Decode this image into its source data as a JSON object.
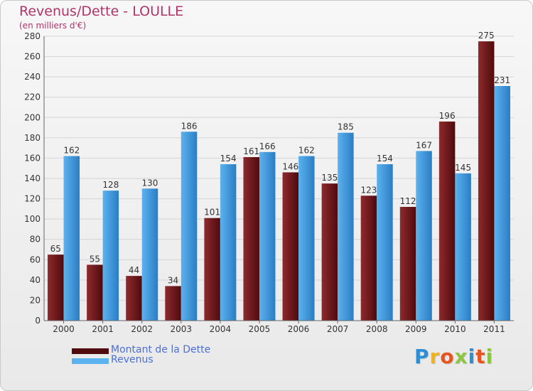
{
  "header": {
    "title": "Revenus/Dette - LOULLE",
    "subtitle": "(en milliers d'€)"
  },
  "colors": {
    "title": "#b0336a",
    "dette_light": "#8e2a2e",
    "dette_dark": "#4f0b0d",
    "revenus_light": "#5cb2ee",
    "revenus_dark": "#2a7dc4",
    "legend_text": "#4b6fd6",
    "grid": "#d4d4d4"
  },
  "chart_data": {
    "type": "bar",
    "title": "Revenus/Dette - LOULLE",
    "ylabel": "(en milliers d'€)",
    "xlabel": "",
    "ylim": [
      0,
      280
    ],
    "yticks": [
      0,
      20,
      40,
      60,
      80,
      100,
      120,
      140,
      160,
      180,
      200,
      220,
      240,
      260,
      280
    ],
    "grid": true,
    "categories": [
      "2000",
      "2001",
      "2002",
      "2003",
      "2004",
      "2005",
      "2006",
      "2007",
      "2008",
      "2009",
      "2010",
      "2011"
    ],
    "series": [
      {
        "name": "Montant de la Dette",
        "values": [
          65,
          55,
          44,
          34,
          101,
          161,
          146,
          135,
          123,
          112,
          196,
          275
        ]
      },
      {
        "name": "Revenus",
        "values": [
          162,
          128,
          130,
          186,
          154,
          166,
          162,
          185,
          154,
          167,
          145,
          231
        ]
      }
    ],
    "legend_position": "bottom-left"
  },
  "logo": {
    "letters": [
      {
        "char": "P",
        "color": "#2c8fd6"
      },
      {
        "char": "r",
        "color": "#f2b21a"
      },
      {
        "char": "o",
        "color": "#e8541f"
      },
      {
        "char": "x",
        "color": "#8cc63f"
      },
      {
        "char": "i",
        "color": "#2c8fd6"
      },
      {
        "char": "t",
        "color": "#e8541f"
      },
      {
        "char": "i",
        "color": "#8cc63f"
      }
    ]
  }
}
